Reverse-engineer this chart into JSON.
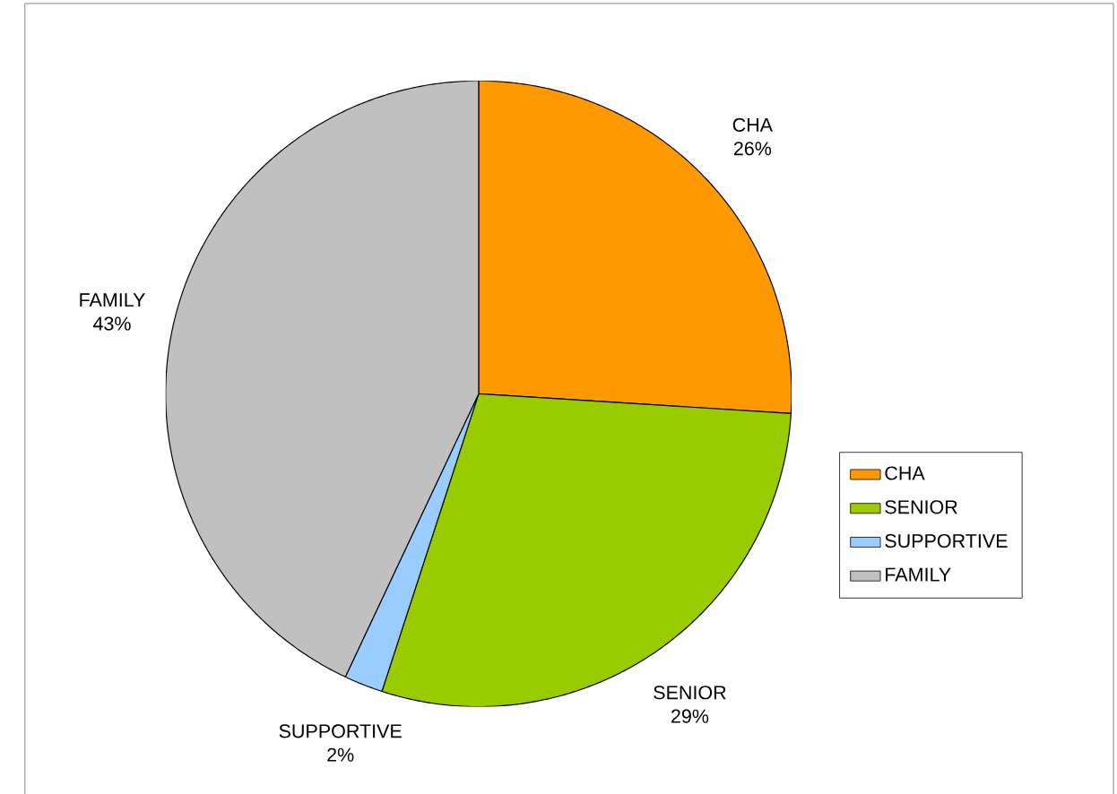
{
  "chart_data": {
    "type": "pie",
    "categories": [
      "CHA",
      "SENIOR",
      "SUPPORTIVE",
      "FAMILY"
    ],
    "values": [
      26,
      29,
      2,
      43
    ],
    "value_labels": [
      "26%",
      "29%",
      "2%",
      "43%"
    ],
    "colors": [
      "#ff9900",
      "#99cc00",
      "#99ccff",
      "#c0c0c0"
    ],
    "legend": "right"
  }
}
